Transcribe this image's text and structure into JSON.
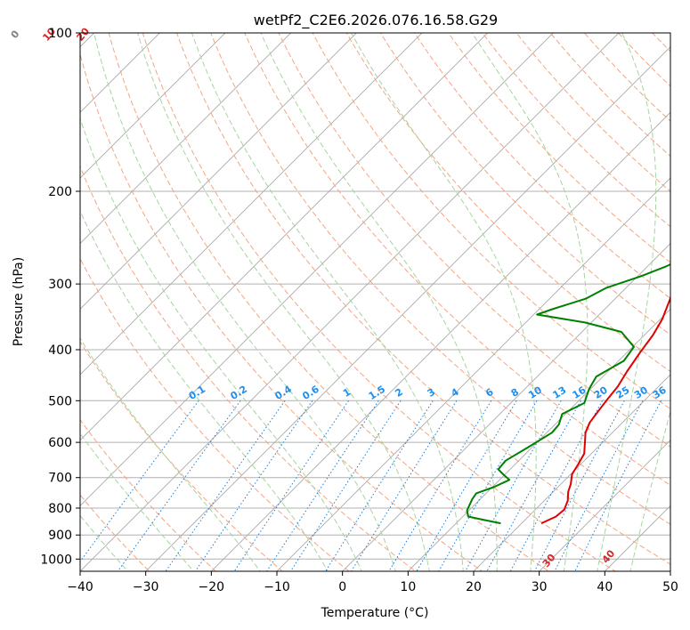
{
  "chart_data": {
    "type": "line",
    "title": "wetPf2_C2E6.2026.076.16.58.G29",
    "xlabel": "Temperature (°C)",
    "ylabel": "Pressure (hPa)",
    "xlim": [
      -40,
      50
    ],
    "ylim": [
      1050,
      100
    ],
    "x_ticks": [
      "−40",
      "−30",
      "−20",
      "−10",
      "0",
      "10",
      "20",
      "30",
      "40",
      "50"
    ],
    "x_tick_values": [
      -40,
      -30,
      -20,
      -10,
      0,
      10,
      20,
      30,
      40,
      50
    ],
    "y_ticks": [
      "100",
      "200",
      "300",
      "400",
      "500",
      "600",
      "700",
      "800",
      "900",
      "1000"
    ],
    "y_tick_values": [
      100,
      200,
      300,
      400,
      500,
      600,
      700,
      800,
      900,
      1000
    ],
    "series": [
      {
        "name": "temperature",
        "color": "#e00000",
        "points": [
          [
            23,
            855
          ],
          [
            24.2,
            830
          ],
          [
            24.4,
            805
          ],
          [
            23.6,
            775
          ],
          [
            22.3,
            745
          ],
          [
            21.5,
            720
          ],
          [
            20.2,
            690
          ],
          [
            19.6,
            660
          ],
          [
            18.9,
            630
          ],
          [
            17.3,
            600
          ],
          [
            15.9,
            575
          ],
          [
            15.0,
            550
          ],
          [
            14.6,
            525
          ],
          [
            14.2,
            500
          ],
          [
            13.8,
            470
          ],
          [
            12.9,
            440
          ],
          [
            12.0,
            405
          ],
          [
            11.3,
            375
          ],
          [
            10.3,
            350
          ],
          [
            8.4,
            320
          ],
          [
            6.0,
            290
          ],
          [
            4.2,
            265
          ],
          [
            2.3,
            240
          ],
          [
            0.6,
            220
          ],
          [
            -1.4,
            200
          ],
          [
            -0.6,
            185
          ],
          [
            1.8,
            170
          ],
          [
            4.6,
            158
          ],
          [
            5.5,
            145
          ],
          [
            6.5,
            130
          ],
          [
            9.7,
            117
          ],
          [
            11.8,
            110
          ],
          [
            12.6,
            104
          ],
          [
            12.6,
            100
          ]
        ]
      },
      {
        "name": "dewpoint",
        "color": "#008000",
        "points": [
          [
            16.8,
            855
          ],
          [
            13.6,
            842
          ],
          [
            10.8,
            830
          ],
          [
            9.7,
            808
          ],
          [
            8.8,
            770
          ],
          [
            8.5,
            750
          ],
          [
            10.2,
            730
          ],
          [
            11.5,
            707
          ],
          [
            9.7,
            690
          ],
          [
            8.2,
            675
          ],
          [
            8.0,
            650
          ],
          [
            9.5,
            610
          ],
          [
            10.8,
            575
          ],
          [
            10.6,
            555
          ],
          [
            9.5,
            530
          ],
          [
            11.2,
            505
          ],
          [
            9.8,
            475
          ],
          [
            9.0,
            450
          ],
          [
            10.8,
            420
          ],
          [
            10.2,
            395
          ],
          [
            6.0,
            370
          ],
          [
            -1.0,
            355
          ],
          [
            -9.5,
            343
          ],
          [
            -8.0,
            335
          ],
          [
            -4.5,
            320
          ],
          [
            -3.0,
            305
          ],
          [
            0.5,
            290
          ],
          [
            2.8,
            278
          ],
          [
            4.2,
            268
          ],
          [
            2.4,
            258
          ],
          [
            1.2,
            242
          ],
          [
            -0.6,
            225
          ],
          [
            -1.4,
            210
          ],
          [
            -1.4,
            195
          ],
          [
            -3.2,
            183
          ],
          [
            -8.5,
            172
          ],
          [
            -13.2,
            163
          ],
          [
            -11.0,
            153
          ],
          [
            -8.6,
            145
          ],
          [
            -7.2,
            137
          ],
          [
            -7.5,
            129
          ],
          [
            -8.6,
            122
          ],
          [
            -7.2,
            112
          ],
          [
            -2.5,
            103
          ],
          [
            -0.6,
            100
          ]
        ]
      }
    ],
    "dry_adiabat_labels": [
      "-100",
      "-90",
      "-80",
      "-70",
      "-60",
      "-50",
      "-40",
      "-30",
      "-20",
      "-10",
      "0",
      "10",
      "20",
      "30",
      "40"
    ],
    "dry_adiabat_values": [
      -100,
      -90,
      -80,
      -70,
      -60,
      -50,
      -40,
      -30,
      -20,
      -10,
      0,
      10,
      20,
      30,
      40
    ],
    "mixing_ratio_labels": [
      "0.1",
      "0.2",
      "0.4",
      "0.6",
      "1",
      "1.5",
      "2",
      "3",
      "4",
      "6",
      "8",
      "10",
      "13",
      "16",
      "20",
      "25",
      "30",
      "36"
    ],
    "mixing_ratio_values": [
      0.1,
      0.2,
      0.4,
      0.6,
      1,
      1.5,
      2,
      3,
      4,
      6,
      8,
      10,
      13,
      16,
      20,
      25,
      30,
      36
    ],
    "isotherm_values": [
      -150,
      -140,
      -130,
      -120,
      -110,
      -100,
      -90,
      -80,
      -70,
      -60,
      -50,
      -40,
      -30,
      -20,
      -10,
      0,
      10,
      20,
      30,
      40,
      50
    ],
    "dry_adiabat_theta_K": [
      200,
      210,
      220,
      230,
      240,
      250,
      260,
      270,
      280,
      290,
      300,
      310,
      320,
      330,
      340,
      350,
      360,
      370,
      380,
      390,
      400,
      410,
      420,
      430,
      440,
      450,
      460,
      470,
      480,
      490,
      500
    ],
    "moist_adiabat_C": [
      -30,
      -20,
      -10,
      0,
      5,
      10,
      15,
      20,
      25,
      30,
      35,
      40,
      45
    ]
  },
  "colors": {
    "temperature": "#e00000",
    "dewpoint": "#008000",
    "dry_adiabat": "#f4a582",
    "moist_adiabat": "#a6d4a0",
    "mixing_ratio": "#1f7fd6",
    "isotherm": "#aaaaaa",
    "grid": "#b0b0b0",
    "dry_label": "#1f5f9f",
    "mix_label": "#1f8fef",
    "warm_label": "#d62728",
    "zero_label": "#808080"
  }
}
